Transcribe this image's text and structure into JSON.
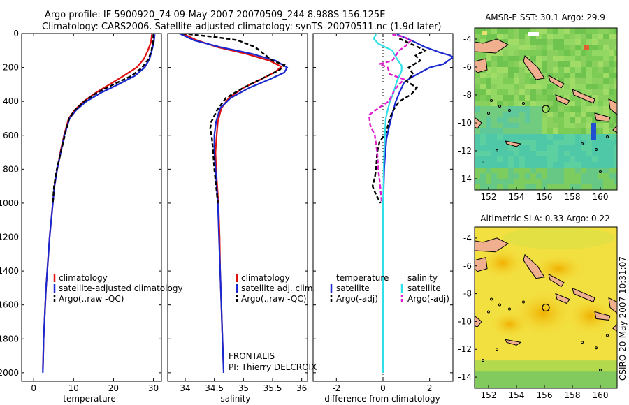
{
  "header": {
    "line1": "Argo profile: IF 5900920_74 09-May-2007 20070509_244 8.988S 156.125E",
    "line2": "Climatology: CARS2006. Satellite-adjusted climatology: synTS_20070511.nc (1.9d later)"
  },
  "side_label": "CSIRO 20-May-2007 10:31:07",
  "frontalis": {
    "line1": "FRONTALIS",
    "line2": "PI: Thierry DELCROIX"
  },
  "colors": {
    "climatology": "#e01010",
    "satellite": "#1a28d0",
    "argo": "#000000",
    "sat_sal": "#30e0e8",
    "argo_adj": "#e020d0"
  },
  "chart_data": [
    {
      "id": "temperature",
      "type": "line",
      "xlabel": "temperature",
      "ylabel": "",
      "xlim": [
        -3,
        32
      ],
      "ylim": [
        2050,
        0
      ],
      "xticks": [
        0,
        10,
        20,
        30
      ],
      "yticks": [
        0,
        200,
        400,
        600,
        800,
        1000,
        1200,
        1400,
        1600,
        1800,
        2000
      ],
      "legend": [
        "climatology",
        "satellite-adjusted climatology",
        "Argo(..raw -QC)"
      ],
      "legend_position": "lower-center",
      "series": [
        {
          "name": "climatology",
          "color": "#e01010",
          "style": "solid",
          "points": [
            [
              29.6,
              5
            ],
            [
              29.4,
              50
            ],
            [
              28.6,
              100
            ],
            [
              27.6,
              150
            ],
            [
              25.8,
              200
            ],
            [
              22.5,
              250
            ],
            [
              19.0,
              300
            ],
            [
              15.5,
              350
            ],
            [
              12.5,
              400
            ],
            [
              10.3,
              450
            ],
            [
              8.8,
              500
            ],
            [
              7.6,
              600
            ],
            [
              6.7,
              700
            ],
            [
              5.9,
              800
            ],
            [
              5.2,
              900
            ],
            [
              4.8,
              1000
            ],
            [
              4.4,
              1100
            ],
            [
              4.0,
              1200
            ],
            [
              3.7,
              1300
            ],
            [
              3.4,
              1400
            ],
            [
              3.1,
              1500
            ],
            [
              2.9,
              1600
            ],
            [
              2.7,
              1700
            ],
            [
              2.5,
              1800
            ],
            [
              2.4,
              1900
            ],
            [
              2.3,
              1980
            ]
          ]
        },
        {
          "name": "satellite-adjusted climatology",
          "color": "#1a28d0",
          "style": "solid",
          "points": [
            [
              30.3,
              5
            ],
            [
              30.1,
              50
            ],
            [
              29.6,
              100
            ],
            [
              29.0,
              150
            ],
            [
              27.8,
              200
            ],
            [
              25.3,
              250
            ],
            [
              21.2,
              300
            ],
            [
              16.8,
              350
            ],
            [
              13.2,
              400
            ],
            [
              10.7,
              450
            ],
            [
              9.0,
              500
            ],
            [
              7.7,
              600
            ],
            [
              6.8,
              700
            ],
            [
              5.9,
              800
            ],
            [
              5.2,
              900
            ],
            [
              4.8,
              1000
            ],
            [
              4.4,
              1100
            ],
            [
              4.0,
              1200
            ],
            [
              3.7,
              1300
            ],
            [
              3.4,
              1400
            ],
            [
              3.1,
              1500
            ],
            [
              2.9,
              1600
            ],
            [
              2.7,
              1700
            ],
            [
              2.5,
              1800
            ],
            [
              2.4,
              1900
            ],
            [
              2.3,
              2000
            ]
          ]
        },
        {
          "name": "Argo(..raw -QC)",
          "color": "#000000",
          "style": "dashed",
          "points": [
            [
              30.0,
              5
            ],
            [
              29.9,
              50
            ],
            [
              29.5,
              100
            ],
            [
              28.8,
              150
            ],
            [
              27.2,
              200
            ],
            [
              24.5,
              250
            ],
            [
              20.0,
              300
            ],
            [
              15.8,
              350
            ],
            [
              12.7,
              400
            ],
            [
              10.4,
              450
            ],
            [
              8.9,
              500
            ],
            [
              7.8,
              600
            ],
            [
              6.8,
              700
            ],
            [
              5.8,
              800
            ],
            [
              5.1,
              900
            ],
            [
              4.8,
              1000
            ]
          ]
        }
      ]
    },
    {
      "id": "salinity",
      "type": "line",
      "xlabel": "salinity",
      "ylabel": "",
      "xlim": [
        33.7,
        36.1
      ],
      "ylim": [
        2050,
        0
      ],
      "xticks": [
        34,
        34.5,
        35,
        35.5,
        36
      ],
      "legend": [
        "climatology",
        "satellite adj. clim.",
        "Argo(..raw -QC)"
      ],
      "legend_position": "lower-center",
      "series": [
        {
          "name": "climatology",
          "color": "#e01010",
          "style": "solid",
          "points": [
            [
              33.95,
              0
            ],
            [
              34.2,
              40
            ],
            [
              34.55,
              80
            ],
            [
              35.05,
              120
            ],
            [
              35.45,
              160
            ],
            [
              35.65,
              195
            ],
            [
              35.55,
              225
            ],
            [
              35.3,
              270
            ],
            [
              35.0,
              320
            ],
            [
              34.75,
              380
            ],
            [
              34.62,
              440
            ],
            [
              34.56,
              520
            ],
            [
              34.54,
              600
            ],
            [
              34.52,
              700
            ],
            [
              34.53,
              800
            ],
            [
              34.55,
              900
            ],
            [
              34.57,
              1000
            ],
            [
              34.59,
              1200
            ],
            [
              34.6,
              1400
            ],
            [
              34.62,
              1600
            ],
            [
              34.64,
              1800
            ],
            [
              34.66,
              1980
            ]
          ]
        },
        {
          "name": "satellite adj. clim.",
          "color": "#1a28d0",
          "style": "solid",
          "points": [
            [
              33.9,
              0
            ],
            [
              34.15,
              40
            ],
            [
              34.6,
              80
            ],
            [
              35.15,
              120
            ],
            [
              35.55,
              160
            ],
            [
              35.75,
              200
            ],
            [
              35.7,
              230
            ],
            [
              35.45,
              270
            ],
            [
              35.1,
              320
            ],
            [
              34.78,
              380
            ],
            [
              34.6,
              440
            ],
            [
              34.53,
              520
            ],
            [
              34.5,
              600
            ],
            [
              34.5,
              700
            ],
            [
              34.52,
              800
            ],
            [
              34.54,
              900
            ],
            [
              34.56,
              1000
            ],
            [
              34.58,
              1200
            ],
            [
              34.6,
              1400
            ],
            [
              34.62,
              1600
            ],
            [
              34.64,
              1800
            ],
            [
              34.66,
              2000
            ]
          ]
        },
        {
          "name": "Argo(..raw -QC)",
          "color": "#000000",
          "style": "dashed",
          "points": [
            [
              33.95,
              0
            ],
            [
              34.5,
              20
            ],
            [
              34.9,
              40
            ],
            [
              35.2,
              80
            ],
            [
              35.35,
              120
            ],
            [
              35.5,
              160
            ],
            [
              35.7,
              185
            ],
            [
              35.62,
              215
            ],
            [
              35.35,
              260
            ],
            [
              35.0,
              320
            ],
            [
              34.7,
              380
            ],
            [
              34.55,
              450
            ],
            [
              34.45,
              520
            ],
            [
              34.43,
              560
            ],
            [
              34.46,
              620
            ],
            [
              34.48,
              700
            ],
            [
              34.5,
              800
            ],
            [
              34.53,
              900
            ],
            [
              34.56,
              1000
            ]
          ]
        }
      ]
    },
    {
      "id": "difference",
      "type": "line",
      "xlabel": "difference from climatology",
      "ylabel": "",
      "xlim": [
        -3,
        3
      ],
      "ylim": [
        2050,
        0
      ],
      "xticks": [
        -2,
        0,
        2
      ],
      "legend_left_title": "temperature",
      "legend_right_title": "salinity",
      "legend_left": [
        "satellite",
        "Argo(-adj)"
      ],
      "legend_right": [
        "satellite",
        "Argo(-adj)"
      ],
      "legend_position": "lower-center",
      "series": [
        {
          "name": "temperature satellite",
          "color": "#1a28d0",
          "style": "solid",
          "points": [
            [
              0.6,
              5
            ],
            [
              1.2,
              40
            ],
            [
              1.8,
              80
            ],
            [
              2.4,
              110
            ],
            [
              2.9,
              130
            ],
            [
              3.0,
              140
            ],
            [
              2.6,
              180
            ],
            [
              2.0,
              200
            ],
            [
              1.6,
              230
            ],
            [
              1.2,
              260
            ],
            [
              0.9,
              290
            ],
            [
              0.8,
              320
            ],
            [
              0.7,
              350
            ],
            [
              0.55,
              400
            ],
            [
              0.45,
              450
            ],
            [
              0.35,
              500
            ],
            [
              0.25,
              560
            ],
            [
              0.15,
              620
            ],
            [
              0.1,
              700
            ],
            [
              0.05,
              800
            ],
            [
              0.03,
              900
            ],
            [
              0.02,
              1000
            ],
            [
              0.0,
              1200
            ],
            [
              0.0,
              1400
            ],
            [
              0.0,
              1600
            ],
            [
              0.0,
              2000
            ]
          ]
        },
        {
          "name": "temperature Argo(-adj)",
          "color": "#000000",
          "style": "dashed",
          "points": [
            [
              0.7,
              30
            ],
            [
              1.5,
              80
            ],
            [
              1.8,
              100
            ],
            [
              1.4,
              130
            ],
            [
              1.6,
              160
            ],
            [
              1.1,
              200
            ],
            [
              1.3,
              240
            ],
            [
              1.0,
              280
            ],
            [
              1.45,
              320
            ],
            [
              1.2,
              360
            ],
            [
              0.7,
              400
            ],
            [
              0.4,
              460
            ],
            [
              0.25,
              520
            ],
            [
              0.15,
              580
            ],
            [
              -0.15,
              640
            ],
            [
              -0.25,
              700
            ],
            [
              -0.3,
              800
            ],
            [
              -0.35,
              850
            ],
            [
              -0.45,
              900
            ],
            [
              -0.3,
              950
            ],
            [
              -0.1,
              1000
            ]
          ]
        },
        {
          "name": "salinity satellite",
          "color": "#30e0e8",
          "style": "solid",
          "points": [
            [
              -0.3,
              5
            ],
            [
              -0.4,
              30
            ],
            [
              -0.2,
              60
            ],
            [
              0.4,
              100
            ],
            [
              0.6,
              150
            ],
            [
              0.8,
              190
            ],
            [
              0.8,
              220
            ],
            [
              0.6,
              280
            ],
            [
              0.45,
              350
            ],
            [
              0.3,
              400
            ],
            [
              0.2,
              450
            ],
            [
              0.12,
              500
            ],
            [
              0.08,
              600
            ],
            [
              0.05,
              700
            ],
            [
              0.03,
              800
            ],
            [
              0.02,
              900
            ],
            [
              0.0,
              1000
            ],
            [
              0.0,
              1200
            ],
            [
              0.0,
              1400
            ],
            [
              0.0,
              1600
            ],
            [
              0.0,
              1800
            ],
            [
              0.0,
              2000
            ]
          ]
        },
        {
          "name": "salinity Argo(-adj)",
          "color": "#e020d0",
          "style": "dashed",
          "points": [
            [
              0.4,
              5
            ],
            [
              0.9,
              20
            ],
            [
              1.2,
              40
            ],
            [
              1.0,
              70
            ],
            [
              0.7,
              100
            ],
            [
              0.55,
              130
            ],
            [
              0.4,
              160
            ],
            [
              -0.15,
              180
            ],
            [
              0.2,
              200
            ],
            [
              0.3,
              240
            ],
            [
              0.9,
              270
            ],
            [
              0.7,
              300
            ],
            [
              0.5,
              330
            ],
            [
              0.4,
              360
            ],
            [
              0.25,
              400
            ],
            [
              -0.2,
              440
            ],
            [
              -0.6,
              480
            ],
            [
              -0.55,
              540
            ],
            [
              -0.35,
              600
            ],
            [
              -0.25,
              700
            ],
            [
              -0.2,
              800
            ],
            [
              -0.12,
              900
            ],
            [
              -0.05,
              1000
            ]
          ]
        }
      ]
    },
    {
      "id": "sst_map",
      "type": "heatmap",
      "title": "AMSR-E SST: 30.1 Argo: 29.9",
      "xticks": [
        152,
        154,
        156,
        158,
        160
      ],
      "yticks": [
        -4,
        -6,
        -8,
        -10,
        -12,
        -14
      ],
      "xlim": [
        151,
        161.2
      ],
      "ylim": [
        -14.8,
        -3.2
      ],
      "marker": {
        "lon": 156.1,
        "lat": -9.0
      }
    },
    {
      "id": "sla_map",
      "type": "heatmap",
      "title": "Altimetric SLA: 0.33 Argo: 0.22",
      "xticks": [
        152,
        154,
        156,
        158,
        160
      ],
      "yticks": [
        -4,
        -6,
        -8,
        -10,
        -12,
        -14
      ],
      "xlim": [
        151,
        161.2
      ],
      "ylim": [
        -14.8,
        -3.2
      ],
      "marker": {
        "lon": 156.1,
        "lat": -9.0
      }
    }
  ]
}
